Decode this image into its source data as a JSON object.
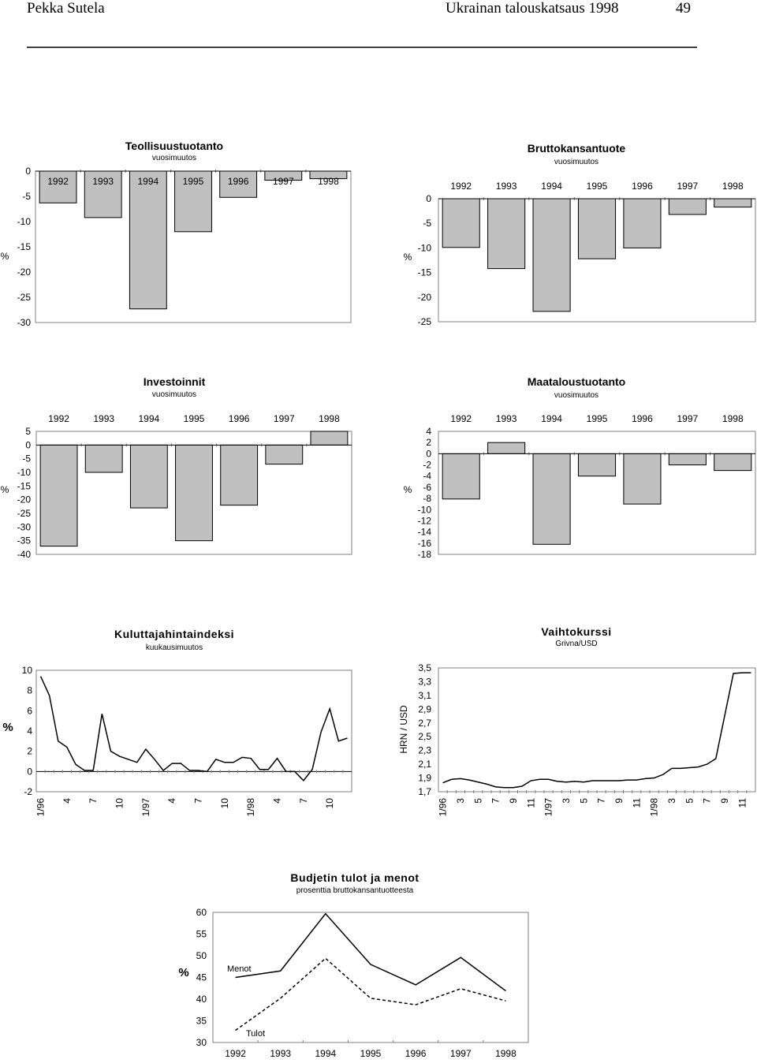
{
  "header": {
    "author": "Pekka Sutela",
    "title": "Ukrainan talouskatsaus 1998",
    "page": "49"
  },
  "chart_data": [
    {
      "id": "teollisuus",
      "type": "bar",
      "title": "Teollisuustuotanto",
      "subtitle": "vuosimuutos",
      "ylabel": "%",
      "categories": [
        "1992",
        "1993",
        "1994",
        "1995",
        "1996",
        "1997",
        "1998"
      ],
      "values": [
        -6.3,
        -9.2,
        -27.3,
        -12.0,
        -5.2,
        -1.8,
        -1.5
      ],
      "ylim": [
        -30,
        0
      ],
      "yticks": [
        0,
        -5,
        -10,
        -15,
        -20,
        -25,
        -30
      ],
      "bar_color": "#c0c0c0"
    },
    {
      "id": "bkt",
      "type": "bar",
      "title": "Bruttokansantuote",
      "subtitle": "vuosimuutos",
      "ylabel": "%",
      "categories": [
        "1992",
        "1993",
        "1994",
        "1995",
        "1996",
        "1997",
        "1998"
      ],
      "values": [
        -9.9,
        -14.2,
        -22.9,
        -12.2,
        -10.0,
        -3.2,
        -1.7
      ],
      "ylim": [
        -25,
        0
      ],
      "yticks": [
        0,
        -5,
        -10,
        -15,
        -20,
        -25
      ],
      "bar_color": "#c0c0c0"
    },
    {
      "id": "investoinnit",
      "type": "bar",
      "title": "Investoinnit",
      "subtitle": "vuosimuutos",
      "ylabel": "%",
      "categories": [
        "1992",
        "1993",
        "1994",
        "1995",
        "1996",
        "1997",
        "1998"
      ],
      "values": [
        -37,
        -10,
        -23,
        -35,
        -22,
        -7,
        5
      ],
      "ylim": [
        -40,
        5
      ],
      "yticks": [
        5,
        0,
        -5,
        -10,
        -15,
        -20,
        -25,
        -30,
        -35,
        -40
      ],
      "bar_color": "#c0c0c0"
    },
    {
      "id": "maatalous",
      "type": "bar",
      "title": "Maataloustuotanto",
      "subtitle": "vuosimuutos",
      "ylabel": "%",
      "categories": [
        "1992",
        "1993",
        "1994",
        "1995",
        "1996",
        "1997",
        "1998"
      ],
      "values": [
        -8.1,
        2.0,
        -16.2,
        -4.0,
        -9.0,
        -2.0,
        -3.0
      ],
      "ylim": [
        -18,
        4
      ],
      "yticks": [
        4,
        2,
        0,
        -2,
        -4,
        -6,
        -8,
        -10,
        -12,
        -14,
        -16,
        -18
      ],
      "bar_color": "#c0c0c0"
    },
    {
      "id": "kuluttajahinta",
      "type": "line",
      "title": "Kuluttajahintaindeksi",
      "subtitle": "kuukausimuutos",
      "ylabel": "%",
      "x_ticklabels": [
        "1/96",
        "4",
        "7",
        "10",
        "1/97",
        "4",
        "7",
        "10",
        "1/98",
        "4",
        "7",
        "10"
      ],
      "values": [
        9.4,
        7.5,
        3.0,
        2.4,
        0.7,
        0.1,
        0.1,
        5.7,
        2.0,
        1.5,
        1.2,
        0.9,
        2.2,
        1.2,
        0.1,
        0.8,
        0.8,
        0.1,
        0.1,
        0.0,
        1.2,
        0.9,
        0.9,
        1.4,
        1.3,
        0.2,
        0.2,
        1.3,
        0.0,
        0.0,
        -0.9,
        0.2,
        3.9,
        6.2,
        3.0,
        3.3
      ],
      "ylim": [
        -2,
        10
      ],
      "yticks": [
        10,
        8,
        6,
        4,
        2,
        0,
        -2
      ]
    },
    {
      "id": "vaihtokurssi",
      "type": "line",
      "title": "Vaihtokurssi",
      "subtitle": "Grivna/USD",
      "ylabel": "HRN / USD",
      "x_ticklabels": [
        "1/96",
        "3",
        "5",
        "7",
        "9",
        "11",
        "1/97",
        "3",
        "5",
        "7",
        "9",
        "11",
        "1/98",
        "3",
        "5",
        "7",
        "9",
        "11"
      ],
      "values": [
        1.83,
        1.88,
        1.89,
        1.87,
        1.84,
        1.81,
        1.77,
        1.76,
        1.76,
        1.78,
        1.86,
        1.88,
        1.88,
        1.85,
        1.84,
        1.85,
        1.84,
        1.86,
        1.86,
        1.86,
        1.86,
        1.87,
        1.87,
        1.89,
        1.9,
        1.95,
        2.04,
        2.04,
        2.05,
        2.06,
        2.1,
        2.18,
        2.8,
        3.42,
        3.43,
        3.43
      ],
      "ylim": [
        1.7,
        3.5
      ],
      "yticks": [
        "3,5",
        "3,3",
        "3,1",
        "2,9",
        "2,7",
        "2,5",
        "2,3",
        "2,1",
        "1,9",
        "1,7"
      ]
    },
    {
      "id": "budjetti",
      "type": "line",
      "title": "Budjetin tulot ja menot",
      "subtitle": "prosenttia bruttokansantuotteesta",
      "ylabel": "%",
      "categories": [
        "1992",
        "1993",
        "1994",
        "1995",
        "1996",
        "1997",
        "1998"
      ],
      "series": [
        {
          "name": "Menot",
          "values": [
            45.0,
            46.5,
            59.7,
            48.0,
            43.3,
            49.6,
            41.9
          ],
          "style": "solid"
        },
        {
          "name": "Tulot",
          "values": [
            32.8,
            40.2,
            49.4,
            40.2,
            38.7,
            42.4,
            39.6
          ],
          "style": "dashed"
        }
      ],
      "ylim": [
        30,
        60
      ],
      "yticks": [
        60,
        55,
        50,
        45,
        40,
        35,
        30
      ]
    }
  ]
}
